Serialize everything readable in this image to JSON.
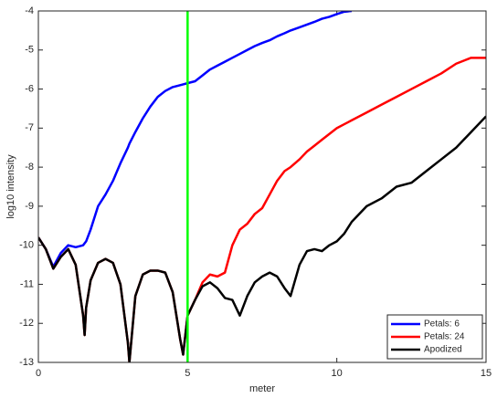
{
  "chart_data": {
    "type": "line",
    "x_label": "meter",
    "y_label": "log10 intensity",
    "xlim": [
      0,
      15
    ],
    "ylim": [
      -13,
      -4
    ],
    "xticks": [
      0,
      5,
      10,
      15
    ],
    "yticks": [
      -13,
      -12,
      -11,
      -10,
      -9,
      -8,
      -7,
      -6,
      -5,
      -4
    ],
    "vline": {
      "x": 5,
      "color": "#00ff00"
    },
    "legend": "bottom-right",
    "x": [
      0,
      0.25,
      0.5,
      0.75,
      1,
      1.25,
      1.5,
      1.55,
      1.6,
      1.75,
      2,
      2.25,
      2.5,
      2.75,
      3,
      3.05,
      3.25,
      3.5,
      3.75,
      4,
      4.25,
      4.5,
      4.75,
      4.85,
      5,
      5.25,
      5.5,
      5.75,
      6,
      6.25,
      6.5,
      6.75,
      7,
      7.25,
      7.5,
      7.75,
      8,
      8.25,
      8.45,
      8.75,
      9,
      9.25,
      9.5,
      9.75,
      10,
      10.25,
      10.5,
      11,
      11.5,
      12,
      12.5,
      13,
      13.5,
      14,
      14.5,
      15
    ],
    "series": [
      {
        "name": "Petals: 6",
        "color": "#0000ff",
        "values": [
          -9.8,
          -10.1,
          -10.55,
          -10.2,
          -10.0,
          -10.05,
          -10.0,
          -9.95,
          -9.9,
          -9.6,
          -9.0,
          -8.7,
          -8.35,
          -7.9,
          -7.5,
          -7.4,
          -7.1,
          -6.75,
          -6.45,
          -6.2,
          -6.05,
          -5.95,
          -5.9,
          -5.88,
          -5.85,
          -5.8,
          -5.65,
          -5.5,
          -5.4,
          -5.3,
          -5.2,
          -5.1,
          -5.0,
          -4.9,
          -4.82,
          -4.75,
          -4.65,
          -4.57,
          -4.5,
          -4.42,
          -4.35,
          -4.28,
          -4.2,
          -4.15,
          -4.08,
          -4.02,
          -4.0,
          null,
          null,
          null,
          null,
          null,
          null,
          null,
          null,
          null
        ]
      },
      {
        "name": "Petals: 24",
        "color": "#ff0000",
        "values": [
          -9.8,
          -10.1,
          -10.6,
          -10.3,
          -10.1,
          -10.5,
          -11.8,
          -12.3,
          -11.6,
          -10.9,
          -10.45,
          -10.35,
          -10.45,
          -11.0,
          -12.5,
          -13.0,
          -11.3,
          -10.75,
          -10.65,
          -10.65,
          -10.7,
          -11.2,
          -12.4,
          -12.8,
          -11.8,
          -11.4,
          -10.95,
          -10.75,
          -10.8,
          -10.7,
          -10.0,
          -9.6,
          -9.45,
          -9.2,
          -9.05,
          -8.7,
          -8.35,
          -8.1,
          -8.0,
          -7.8,
          -7.6,
          -7.45,
          -7.3,
          -7.15,
          -7.0,
          -6.9,
          -6.8,
          -6.6,
          -6.4,
          -6.2,
          -6.0,
          -5.8,
          -5.6,
          -5.35,
          -5.2,
          -5.2
        ]
      },
      {
        "name": "Apodized",
        "color": "#000000",
        "values": [
          -9.8,
          -10.1,
          -10.6,
          -10.3,
          -10.1,
          -10.5,
          -11.8,
          -12.3,
          -11.6,
          -10.9,
          -10.45,
          -10.35,
          -10.45,
          -11.0,
          -12.5,
          -13.0,
          -11.3,
          -10.75,
          -10.65,
          -10.65,
          -10.7,
          -11.2,
          -12.4,
          -12.8,
          -11.8,
          -11.4,
          -11.05,
          -10.95,
          -11.1,
          -11.35,
          -11.4,
          -11.8,
          -11.3,
          -10.95,
          -10.8,
          -10.7,
          -10.8,
          -11.1,
          -11.3,
          -10.5,
          -10.15,
          -10.1,
          -10.15,
          -10.0,
          -9.9,
          -9.7,
          -9.4,
          -9.0,
          -8.8,
          -8.5,
          -8.4,
          -8.1,
          -7.8,
          -7.5,
          -7.1,
          -6.7
        ]
      }
    ]
  }
}
